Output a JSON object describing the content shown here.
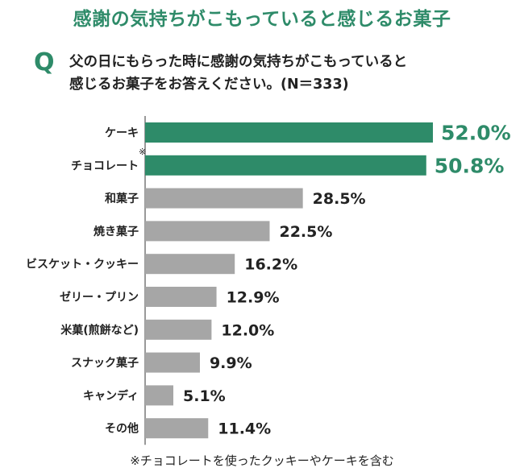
{
  "page": {
    "title": "感謝の気持ちがこもっていると感じるお菓子",
    "question_mark": "Q",
    "question_line1": "父の日にもらった時に感謝の気持ちがこもっていると",
    "question_line2": "感じるお菓子をお答えください。(N＝333)",
    "footnote": "※チョコレートを使ったクッキーやケーキを含む"
  },
  "colors": {
    "accent": "#2e8b69",
    "bar_gray": "#a6a6a6",
    "title": "#2e8b69"
  },
  "chart_data": {
    "type": "bar",
    "orientation": "horizontal",
    "categories": [
      "ケーキ",
      "チョコレート",
      "和菓子",
      "焼き菓子",
      "ビスケット・クッキー",
      "ゼリー・プリン",
      "米菓(煎餅など)",
      "スナック菓子",
      "キャンディ",
      "その他"
    ],
    "category_marks": [
      "",
      "※",
      "",
      "",
      "",
      "",
      "",
      "",
      "",
      ""
    ],
    "values": [
      52.0,
      50.8,
      28.5,
      22.5,
      16.2,
      12.9,
      12.0,
      9.9,
      5.1,
      11.4
    ],
    "value_labels": [
      "52.0%",
      "50.8%",
      "28.5%",
      "22.5%",
      "16.2%",
      "12.9%",
      "12.0%",
      "9.9%",
      "5.1%",
      "11.4%"
    ],
    "highlighted": [
      true,
      true,
      false,
      false,
      false,
      false,
      false,
      false,
      false,
      false
    ],
    "xlim": [
      0,
      60
    ],
    "unit": "%",
    "grid": false,
    "legend": "none"
  }
}
